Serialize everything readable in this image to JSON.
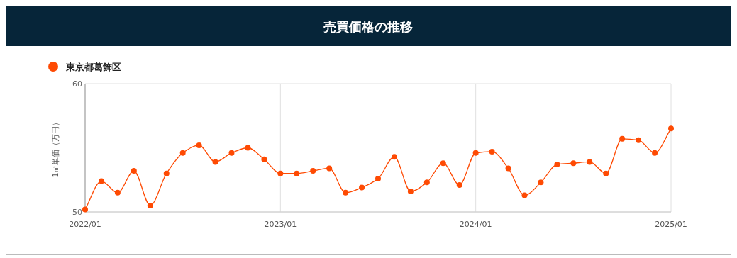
{
  "chart_data": {
    "type": "line",
    "title": "売買価格の推移",
    "ylabel": "1㎡単価（万円）",
    "x": [
      "2022-01",
      "2022-02",
      "2022-03",
      "2022-04",
      "2022-05",
      "2022-06",
      "2022-07",
      "2022-08",
      "2022-09",
      "2022-10",
      "2022-11",
      "2022-12",
      "2023-01",
      "2023-02",
      "2023-03",
      "2023-04",
      "2023-05",
      "2023-06",
      "2023-07",
      "2023-08",
      "2023-09",
      "2023-10",
      "2023-11",
      "2023-12",
      "2024-01",
      "2024-02",
      "2024-03",
      "2024-04",
      "2024-05",
      "2024-06",
      "2024-07",
      "2024-08",
      "2024-09",
      "2024-10",
      "2024-11",
      "2024-12",
      "2025-01"
    ],
    "series": [
      {
        "name": "東京都葛飾区",
        "color": "#fe4a03",
        "values": [
          50.2,
          52.4,
          51.5,
          53.2,
          50.5,
          53.0,
          54.6,
          55.2,
          53.9,
          54.6,
          55.0,
          54.1,
          53.0,
          53.0,
          53.2,
          53.4,
          51.5,
          51.9,
          52.6,
          54.3,
          51.6,
          52.3,
          53.8,
          52.1,
          54.6,
          54.7,
          53.4,
          51.3,
          52.3,
          53.7,
          53.8,
          53.9,
          53.0,
          55.7,
          55.6,
          54.6,
          56.5
        ]
      }
    ],
    "xlim": [
      "2022-01",
      "2025-01"
    ],
    "xticks": [
      {
        "value": "2022-01",
        "label": "2022/01"
      },
      {
        "value": "2023-01",
        "label": "2023/01"
      },
      {
        "value": "2024-01",
        "label": "2024/01"
      },
      {
        "value": "2025-01",
        "label": "2025/01"
      }
    ],
    "ylim": [
      50,
      60
    ],
    "yticks": [
      50,
      60
    ],
    "grid": true,
    "legend": "top left",
    "marker": "circle",
    "line_style": "solid"
  }
}
